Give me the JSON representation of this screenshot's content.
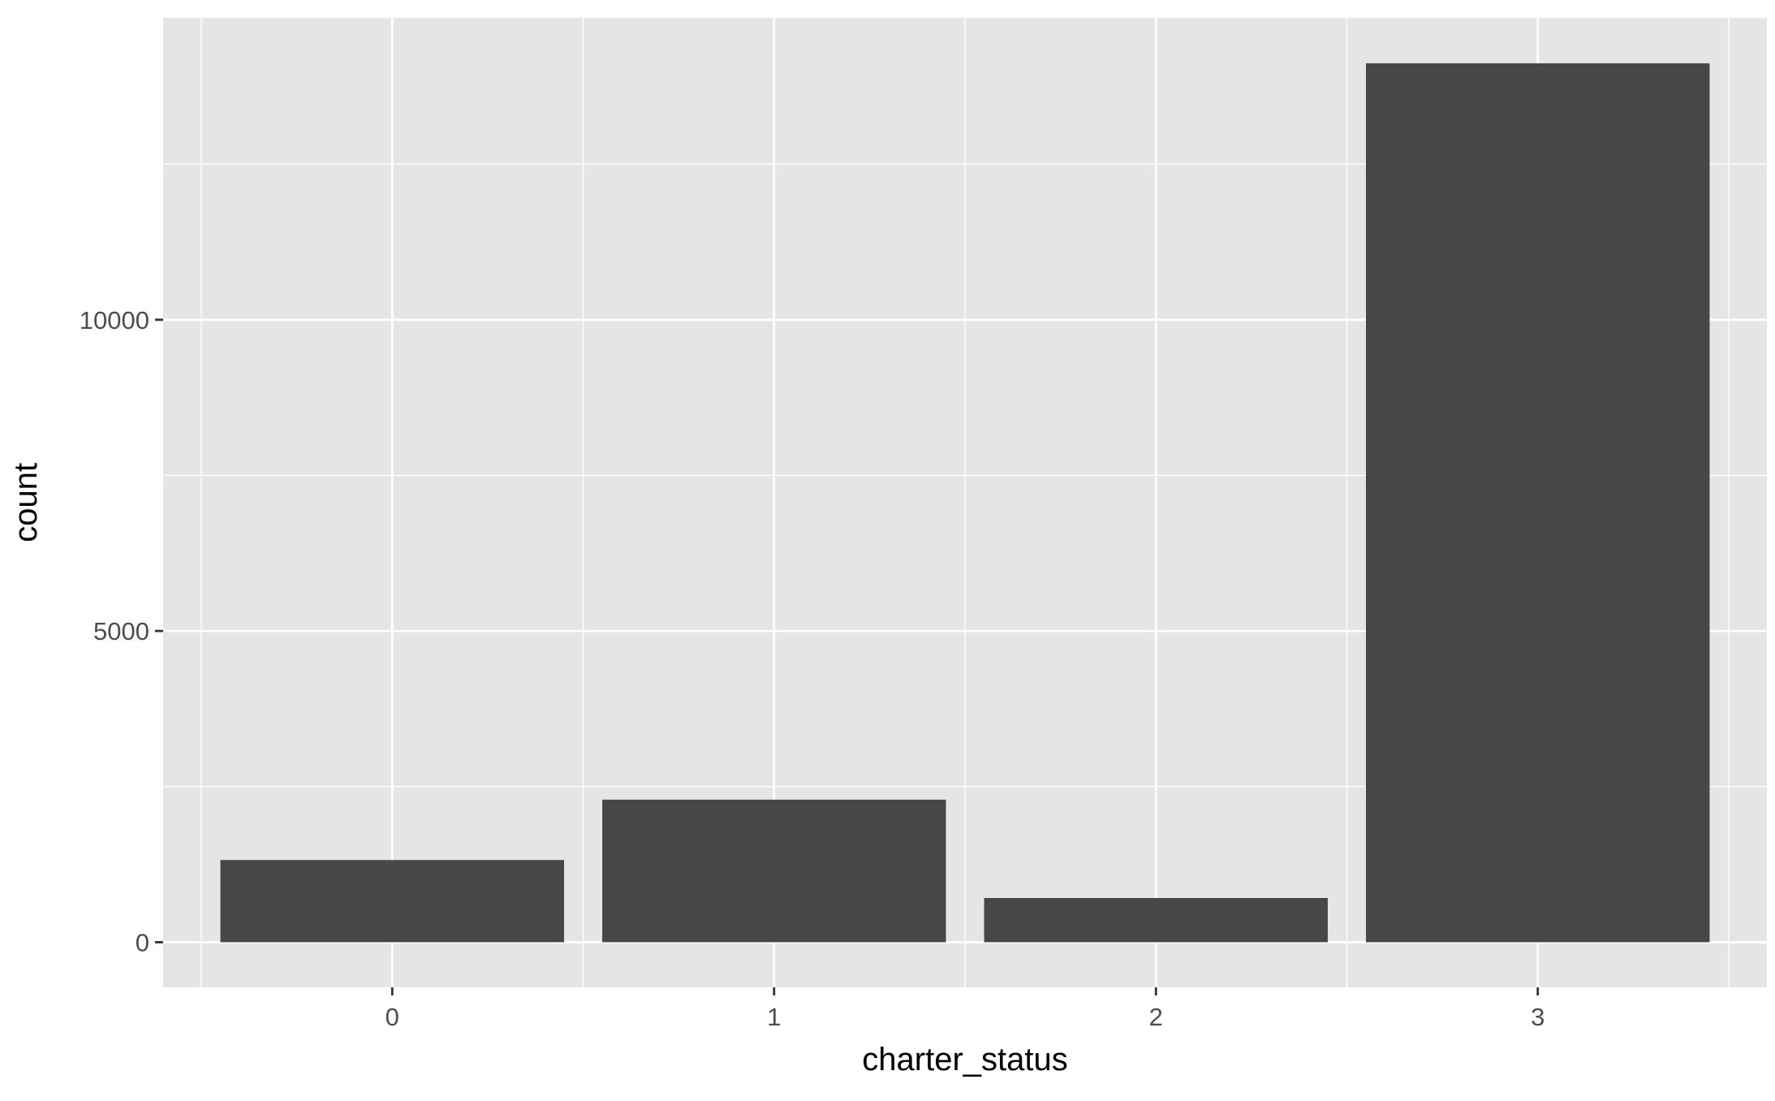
{
  "chart_data": {
    "type": "bar",
    "title": "",
    "xlabel": "charter_status",
    "ylabel": "count",
    "categories": [
      "0",
      "1",
      "2",
      "3"
    ],
    "values": [
      1320,
      2290,
      710,
      14120
    ],
    "ylim": [
      -725,
      14850
    ],
    "y_ticks": [
      0,
      5000,
      10000
    ],
    "y_tick_labels": [
      "0",
      "5000",
      "10000"
    ],
    "y_minor_ticks": [
      2500,
      7500,
      12500
    ],
    "grid": true,
    "legend": "none",
    "colors": {
      "panel_background": "#e5e5e5",
      "grid": "#ffffff",
      "bar_fill": "#474747",
      "tick_label": "#4d4d4d",
      "axis_title": "#000000"
    }
  }
}
